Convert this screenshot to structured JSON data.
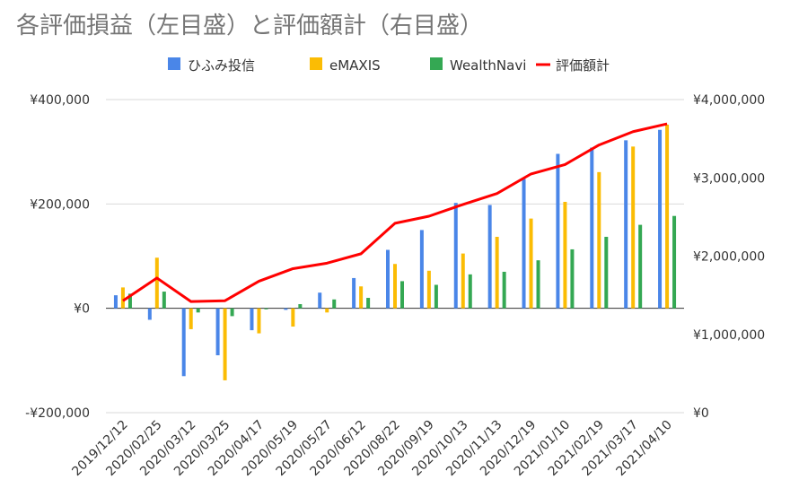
{
  "chart_data": {
    "type": "bar",
    "title": "各評価損益（左目盛）と評価額計（右目盛）",
    "categories": [
      "2019/12/12",
      "2020/02/25",
      "2020/03/12",
      "2020/03/25",
      "2020/04/17",
      "2020/05/19",
      "2020/05/27",
      "2020/06/12",
      "2020/08/22",
      "2020/09/19",
      "2020/10/13",
      "2020/11/13",
      "2020/12/19",
      "2021/01/10",
      "2021/02/19",
      "2021/03/17",
      "2021/04/10"
    ],
    "series": [
      {
        "name": "ひふみ投信",
        "type": "bar",
        "axis": "left",
        "color": "#4a86e8",
        "values": [
          25000,
          -22000,
          -130000,
          -90000,
          -42000,
          -3000,
          30000,
          58000,
          112000,
          150000,
          202000,
          198000,
          248000,
          296000,
          308000,
          322000,
          342000
        ]
      },
      {
        "name": "eMAXIS",
        "type": "bar",
        "axis": "left",
        "color": "#fbbc04",
        "values": [
          40000,
          97000,
          -40000,
          -138000,
          -48000,
          -35000,
          -8000,
          42000,
          85000,
          72000,
          105000,
          137000,
          172000,
          204000,
          261000,
          310000,
          352000
        ]
      },
      {
        "name": "WealthNavi",
        "type": "bar",
        "axis": "left",
        "color": "#34a853",
        "values": [
          28000,
          32000,
          -8000,
          -15000,
          -2000,
          8000,
          17000,
          20000,
          52000,
          45000,
          65000,
          70000,
          92000,
          113000,
          137000,
          160000,
          177000
        ]
      },
      {
        "name": "評価額計",
        "type": "line",
        "axis": "right",
        "color": "#ff0000",
        "values": [
          1430000,
          1720000,
          1420000,
          1430000,
          1680000,
          1840000,
          1910000,
          2030000,
          2420000,
          2510000,
          2660000,
          2800000,
          3050000,
          3170000,
          3420000,
          3590000,
          3690000
        ]
      }
    ],
    "y_left": {
      "min": -200000,
      "max": 400000,
      "ticks": [
        -200000,
        0,
        200000,
        400000
      ],
      "tick_labels": [
        "-¥200,000",
        "¥0",
        "¥200,000",
        "¥400,000"
      ]
    },
    "y_right": {
      "min": 0,
      "max": 4000000,
      "ticks": [
        0,
        1000000,
        2000000,
        3000000,
        4000000
      ],
      "tick_labels": [
        "¥0",
        "¥1,000,000",
        "¥2,000,000",
        "¥3,000,000",
        "¥4,000,000"
      ]
    },
    "grid": true,
    "legend": "top-center"
  }
}
